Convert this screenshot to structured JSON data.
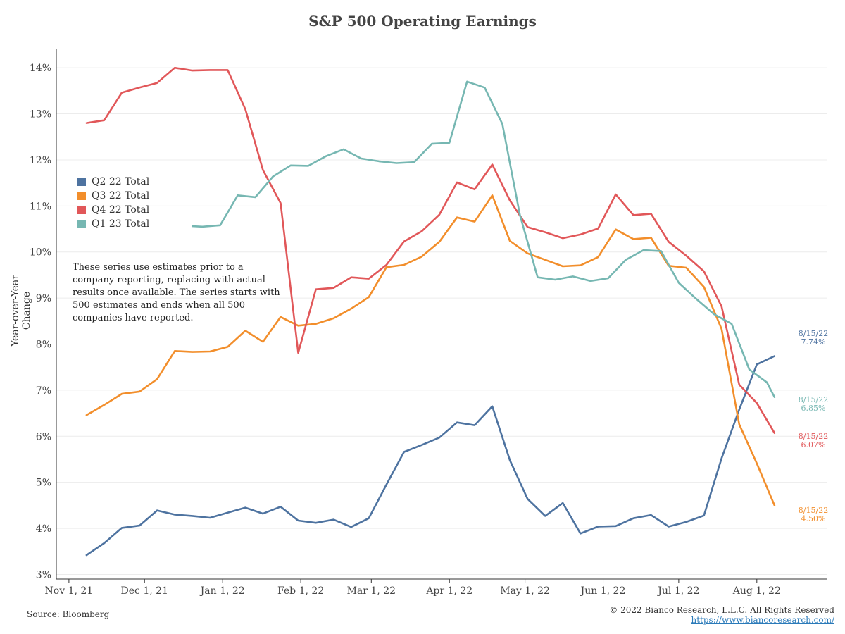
{
  "chart_data": {
    "type": "line",
    "title": "S&P 500 Operating Earnings",
    "ylabel": "Year-over-Year Change",
    "xlabel": "",
    "ylim": [
      2.9,
      14.4
    ],
    "xlim": [
      "2021-10-27",
      "2022-08-29"
    ],
    "y_ticks": [
      3,
      4,
      5,
      6,
      7,
      8,
      9,
      10,
      11,
      12,
      13,
      14
    ],
    "y_tick_labels": [
      "3%",
      "4%",
      "5%",
      "6%",
      "7%",
      "8%",
      "9%",
      "10%",
      "11%",
      "12%",
      "13%",
      "14%"
    ],
    "x_ticks": [
      "2021-11-01",
      "2021-12-01",
      "2022-01-01",
      "2022-02-01",
      "2022-03-01",
      "2022-04-01",
      "2022-05-01",
      "2022-06-01",
      "2022-07-01",
      "2022-08-01"
    ],
    "x_tick_labels": [
      "Nov 1, 21",
      "Dec 1, 21",
      "Jan 1, 22",
      "Feb 1, 22",
      "Mar 1, 22",
      "Apr 1, 22",
      "May 1, 22",
      "Jun 1, 22",
      "Jul 1, 22",
      "Aug 1, 22"
    ],
    "grid": true,
    "legend_position": "left",
    "note": "These series use estimates prior to a company reporting, replacing with actual results once available. The series starts with 500 estimates and ends when all 500 companies have reported.",
    "series": [
      {
        "name": "Q2 22 Total",
        "color": "#4e73a0",
        "end_label": [
          "8/15/22",
          "7.74%"
        ],
        "points": [
          [
            "2021-11-08",
            3.42
          ],
          [
            "2021-11-15",
            3.68
          ],
          [
            "2021-11-22",
            4.01
          ],
          [
            "2021-11-29",
            4.06
          ],
          [
            "2021-12-06",
            4.39
          ],
          [
            "2021-12-13",
            4.3
          ],
          [
            "2021-12-20",
            4.27
          ],
          [
            "2021-12-27",
            4.23
          ],
          [
            "2022-01-03",
            4.34
          ],
          [
            "2022-01-10",
            4.45
          ],
          [
            "2022-01-17",
            4.32
          ],
          [
            "2022-01-24",
            4.47
          ],
          [
            "2022-01-31",
            4.17
          ],
          [
            "2022-02-07",
            4.12
          ],
          [
            "2022-02-14",
            4.19
          ],
          [
            "2022-02-21",
            4.03
          ],
          [
            "2022-02-28",
            4.22
          ],
          [
            "2022-03-07",
            4.95
          ],
          [
            "2022-03-14",
            5.66
          ],
          [
            "2022-03-21",
            5.81
          ],
          [
            "2022-03-28",
            5.97
          ],
          [
            "2022-04-04",
            6.3
          ],
          [
            "2022-04-11",
            6.24
          ],
          [
            "2022-04-18",
            6.65
          ],
          [
            "2022-04-25",
            5.48
          ],
          [
            "2022-05-02",
            4.64
          ],
          [
            "2022-05-09",
            4.27
          ],
          [
            "2022-05-16",
            4.55
          ],
          [
            "2022-05-23",
            3.89
          ],
          [
            "2022-05-30",
            4.04
          ],
          [
            "2022-06-06",
            4.05
          ],
          [
            "2022-06-13",
            4.22
          ],
          [
            "2022-06-20",
            4.29
          ],
          [
            "2022-06-27",
            4.04
          ],
          [
            "2022-07-04",
            4.14
          ],
          [
            "2022-07-11",
            4.28
          ],
          [
            "2022-07-18",
            5.52
          ],
          [
            "2022-07-25",
            6.58
          ],
          [
            "2022-08-01",
            7.56
          ],
          [
            "2022-08-08",
            7.74
          ]
        ]
      },
      {
        "name": "Q3 22 Total",
        "color": "#f28e2b",
        "end_label": [
          "8/15/22",
          "4.50%"
        ],
        "points": [
          [
            "2021-11-08",
            6.46
          ],
          [
            "2021-11-15",
            6.68
          ],
          [
            "2021-11-22",
            6.92
          ],
          [
            "2021-11-29",
            6.97
          ],
          [
            "2021-12-06",
            7.24
          ],
          [
            "2021-12-13",
            7.85
          ],
          [
            "2021-12-20",
            7.83
          ],
          [
            "2021-12-27",
            7.84
          ],
          [
            "2022-01-03",
            7.94
          ],
          [
            "2022-01-10",
            8.29
          ],
          [
            "2022-01-17",
            8.05
          ],
          [
            "2022-01-24",
            8.59
          ],
          [
            "2022-01-31",
            8.4
          ],
          [
            "2022-02-07",
            8.44
          ],
          [
            "2022-02-14",
            8.56
          ],
          [
            "2022-02-21",
            8.77
          ],
          [
            "2022-02-28",
            9.02
          ],
          [
            "2022-03-07",
            9.67
          ],
          [
            "2022-03-14",
            9.72
          ],
          [
            "2022-03-21",
            9.9
          ],
          [
            "2022-03-28",
            10.22
          ],
          [
            "2022-04-04",
            10.75
          ],
          [
            "2022-04-11",
            10.66
          ],
          [
            "2022-04-18",
            11.23
          ],
          [
            "2022-04-25",
            10.24
          ],
          [
            "2022-05-02",
            9.97
          ],
          [
            "2022-05-09",
            9.83
          ],
          [
            "2022-05-16",
            9.69
          ],
          [
            "2022-05-23",
            9.71
          ],
          [
            "2022-05-30",
            9.89
          ],
          [
            "2022-06-06",
            10.49
          ],
          [
            "2022-06-13",
            10.28
          ],
          [
            "2022-06-20",
            10.31
          ],
          [
            "2022-06-27",
            9.7
          ],
          [
            "2022-07-04",
            9.66
          ],
          [
            "2022-07-11",
            9.24
          ],
          [
            "2022-07-18",
            8.33
          ],
          [
            "2022-07-25",
            6.26
          ],
          [
            "2022-08-01",
            5.41
          ],
          [
            "2022-08-08",
            4.5
          ]
        ]
      },
      {
        "name": "Q4 22 Total",
        "color": "#e15759",
        "end_label": [
          "8/15/22",
          "6.07%"
        ],
        "points": [
          [
            "2021-11-08",
            12.8
          ],
          [
            "2021-11-15",
            12.86
          ],
          [
            "2021-11-22",
            13.46
          ],
          [
            "2021-11-29",
            13.57
          ],
          [
            "2021-12-06",
            13.67
          ],
          [
            "2021-12-13",
            14.0
          ],
          [
            "2021-12-20",
            13.94
          ],
          [
            "2021-12-27",
            13.95
          ],
          [
            "2022-01-03",
            13.95
          ],
          [
            "2022-01-10",
            13.1
          ],
          [
            "2022-01-17",
            11.78
          ],
          [
            "2022-01-24",
            11.06
          ],
          [
            "2022-01-31",
            7.81
          ],
          [
            "2022-02-07",
            9.19
          ],
          [
            "2022-02-14",
            9.22
          ],
          [
            "2022-02-21",
            9.45
          ],
          [
            "2022-02-28",
            9.42
          ],
          [
            "2022-03-07",
            9.72
          ],
          [
            "2022-03-14",
            10.23
          ],
          [
            "2022-03-21",
            10.45
          ],
          [
            "2022-03-28",
            10.81
          ],
          [
            "2022-04-04",
            11.51
          ],
          [
            "2022-04-11",
            11.36
          ],
          [
            "2022-04-18",
            11.9
          ],
          [
            "2022-04-25",
            11.12
          ],
          [
            "2022-05-02",
            10.54
          ],
          [
            "2022-05-09",
            10.43
          ],
          [
            "2022-05-16",
            10.3
          ],
          [
            "2022-05-23",
            10.38
          ],
          [
            "2022-05-30",
            10.51
          ],
          [
            "2022-06-06",
            11.25
          ],
          [
            "2022-06-13",
            10.8
          ],
          [
            "2022-06-20",
            10.83
          ],
          [
            "2022-06-27",
            10.22
          ],
          [
            "2022-07-04",
            9.92
          ],
          [
            "2022-07-11",
            9.58
          ],
          [
            "2022-07-18",
            8.82
          ],
          [
            "2022-07-25",
            7.12
          ],
          [
            "2022-08-01",
            6.72
          ],
          [
            "2022-08-08",
            6.07
          ]
        ]
      },
      {
        "name": "Q1 23 Total",
        "color": "#76b7b2",
        "end_label": [
          "8/15/22",
          "6.85%"
        ],
        "points": [
          [
            "2021-12-20",
            10.56
          ],
          [
            "2021-12-24",
            10.55
          ],
          [
            "2021-12-31",
            10.58
          ],
          [
            "2022-01-07",
            11.23
          ],
          [
            "2022-01-14",
            11.19
          ],
          [
            "2022-01-21",
            11.64
          ],
          [
            "2022-01-28",
            11.88
          ],
          [
            "2022-02-04",
            11.87
          ],
          [
            "2022-02-11",
            12.08
          ],
          [
            "2022-02-18",
            12.23
          ],
          [
            "2022-02-25",
            12.03
          ],
          [
            "2022-03-04",
            11.97
          ],
          [
            "2022-03-11",
            11.93
          ],
          [
            "2022-03-18",
            11.95
          ],
          [
            "2022-03-25",
            12.35
          ],
          [
            "2022-04-01",
            12.37
          ],
          [
            "2022-04-08",
            13.7
          ],
          [
            "2022-04-15",
            13.57
          ],
          [
            "2022-04-22",
            12.78
          ],
          [
            "2022-04-29",
            10.8
          ],
          [
            "2022-05-06",
            9.45
          ],
          [
            "2022-05-13",
            9.4
          ],
          [
            "2022-05-20",
            9.47
          ],
          [
            "2022-05-27",
            9.37
          ],
          [
            "2022-06-03",
            9.43
          ],
          [
            "2022-06-10",
            9.83
          ],
          [
            "2022-06-17",
            10.04
          ],
          [
            "2022-06-24",
            10.02
          ],
          [
            "2022-07-01",
            9.33
          ],
          [
            "2022-07-08",
            8.98
          ],
          [
            "2022-07-15",
            8.65
          ],
          [
            "2022-07-22",
            8.44
          ],
          [
            "2022-07-29",
            7.45
          ],
          [
            "2022-08-05",
            7.17
          ],
          [
            "2022-08-08",
            6.85
          ]
        ]
      }
    ]
  },
  "footer": {
    "source": "Source: Bloomberg",
    "copyright": "© 2022 Bianco Research, L.L.C. All Rights Reserved",
    "url": "https://www.biancoresearch.com/"
  }
}
